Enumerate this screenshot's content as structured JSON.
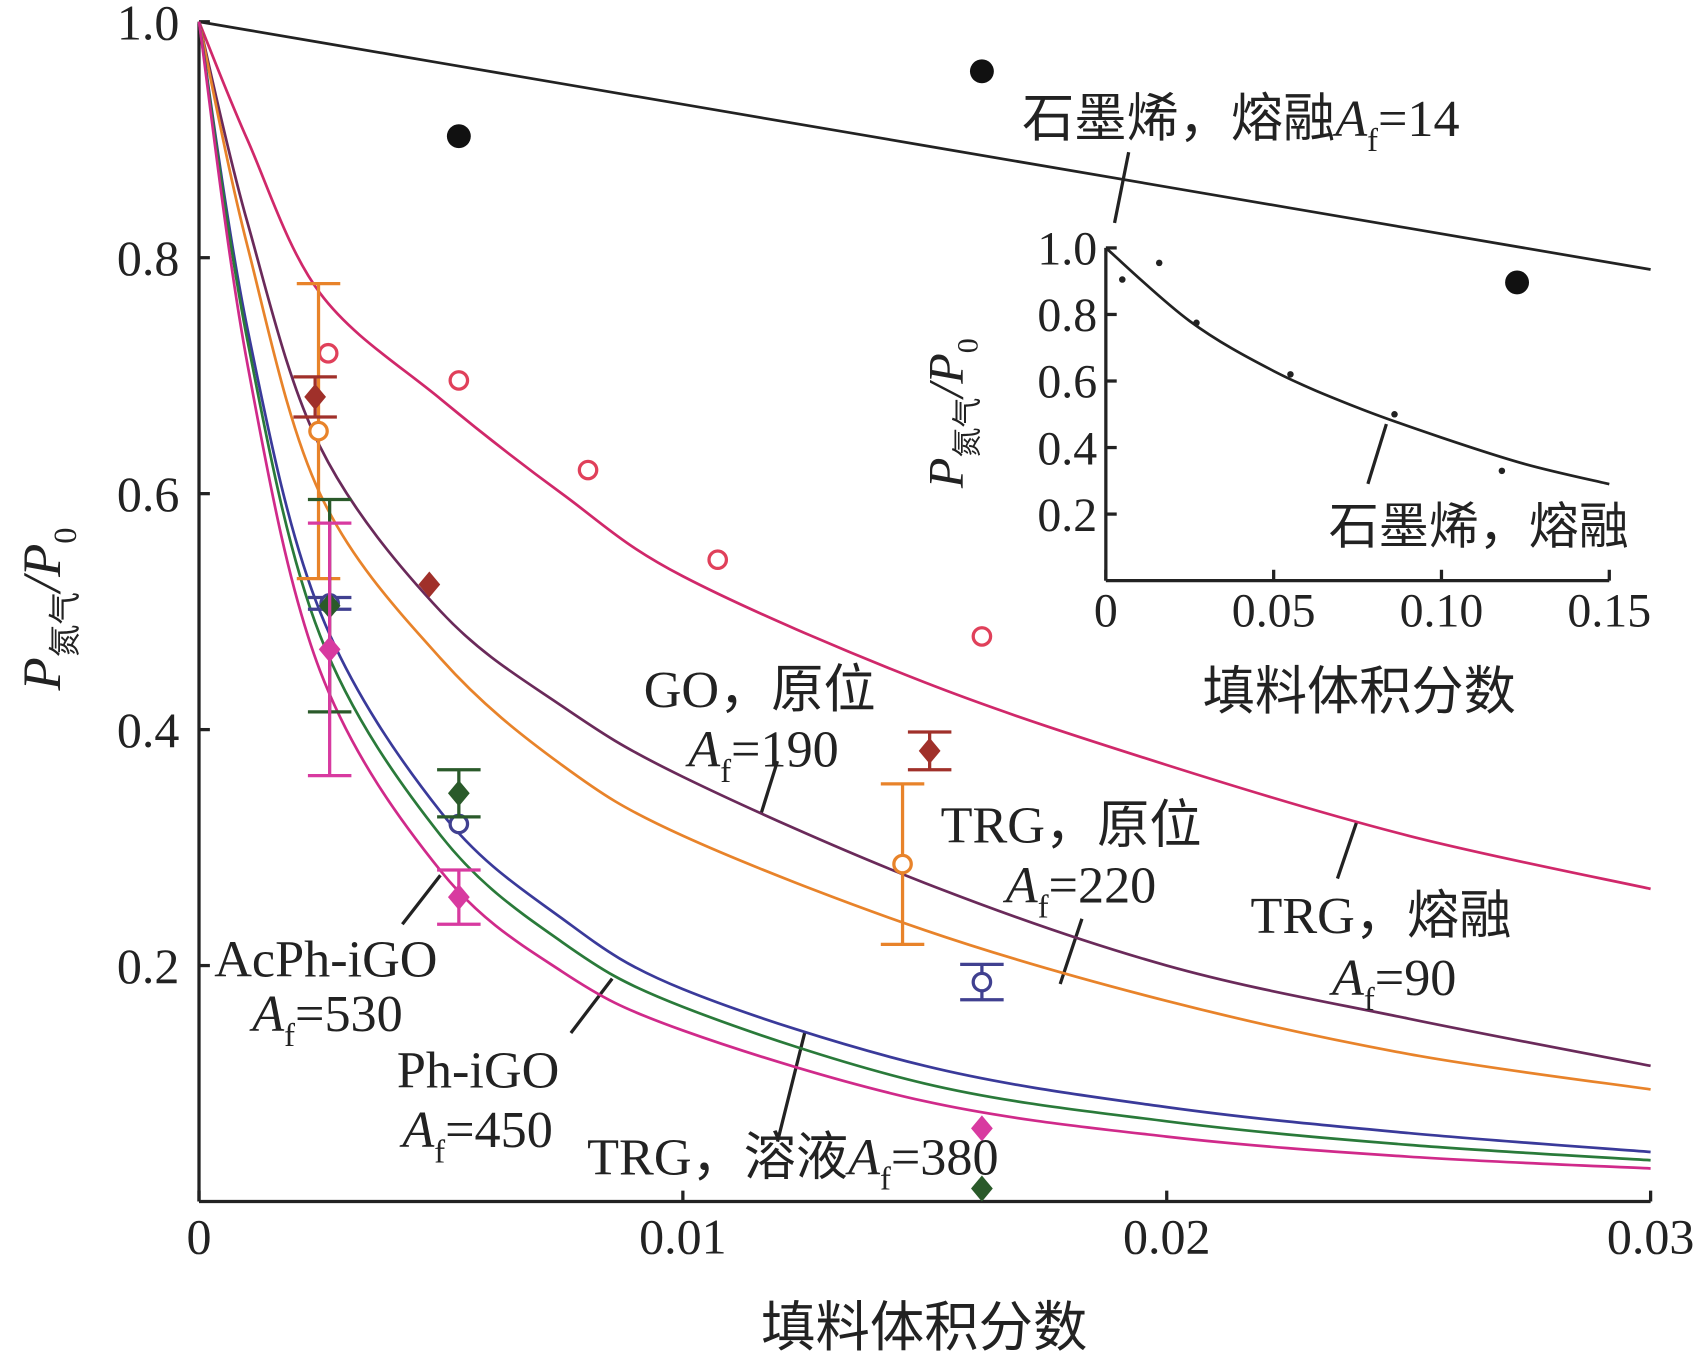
{
  "chart_data": {
    "type": "line",
    "xlabel": "填料体积分数",
    "ylabel": [
      "P",
      "氮气",
      "/P",
      "0"
    ],
    "xlim": [
      0,
      0.03
    ],
    "ylim": [
      0,
      1
    ],
    "xticks": [
      0,
      0.01,
      0.02,
      0.03
    ],
    "yticks": [
      0.2,
      0.4,
      0.6,
      0.8,
      {
        "value": 1.0,
        "label": "1.0"
      }
    ],
    "af_symbol": "A",
    "af_subscript": "f",
    "x": [
      0,
      0.001,
      0.0025,
      0.005,
      0.0075,
      0.01,
      0.015,
      0.02,
      0.025,
      0.03
    ],
    "series": [
      {
        "color": "#222222",
        "values": [
          1,
          0.993,
          0.9825,
          0.965,
          0.9475,
          0.93,
          0.895,
          0.86,
          0.825,
          0.79
        ]
      },
      {
        "color": "#d0286a",
        "values": [
          1,
          0.9,
          0.77,
          0.68,
          0.6,
          0.53,
          0.44,
          0.37,
          0.31,
          0.265
        ]
      },
      {
        "color": "#6a2a5a",
        "values": [
          1,
          0.83,
          0.64,
          0.5,
          0.42,
          0.36,
          0.27,
          0.2,
          0.155,
          0.115
        ]
      },
      {
        "color": "#e8832a",
        "values": [
          1,
          0.81,
          0.6,
          0.46,
          0.37,
          0.31,
          0.23,
          0.17,
          0.125,
          0.095
        ]
      },
      {
        "color": "#3a3a9a",
        "values": [
          1,
          0.74,
          0.5,
          0.33,
          0.24,
          0.18,
          0.115,
          0.08,
          0.058,
          0.042
        ]
      },
      {
        "color": "#2a7a3a",
        "values": [
          1,
          0.73,
          0.48,
          0.31,
          0.22,
          0.165,
          0.1,
          0.068,
          0.048,
          0.035
        ]
      },
      {
        "color": "#d02a8a",
        "values": [
          1,
          0.71,
          0.45,
          0.28,
          0.195,
          0.145,
          0.085,
          0.055,
          0.038,
          0.028
        ]
      }
    ],
    "points": [
      {
        "color": "#111111",
        "marker": "dot",
        "x": [
          0.00537,
          0.01618,
          0.02724
        ],
        "values": [
          0.903,
          0.958,
          0.779
        ],
        "errors": [
          null,
          null,
          null
        ]
      },
      {
        "color": "#e0405a",
        "marker": "circle",
        "x": [
          0.00267,
          0.00537,
          0.00804,
          0.01072,
          0.01618
        ],
        "values": [
          0.719,
          0.696,
          0.62,
          0.544,
          0.479
        ],
        "errors": [
          null,
          null,
          null,
          null,
          null
        ]
      },
      {
        "color": "#e8832a",
        "marker": "circle",
        "x": [
          0.00247,
          0.01454
        ],
        "values": [
          0.653,
          0.286
        ],
        "errors": [
          0.125,
          0.068
        ]
      },
      {
        "color": "#a0302a",
        "marker": "diamond",
        "x": [
          0.0024,
          0.00476,
          0.0151
        ],
        "values": [
          0.682,
          0.523,
          0.382
        ],
        "errors": [
          0.017,
          null,
          0.016
        ]
      },
      {
        "color": "#404090",
        "marker": "circle",
        "x": [
          0.0027,
          0.00537,
          0.01618
        ],
        "values": [
          0.507,
          0.32,
          0.186
        ],
        "errors": [
          0.005,
          null,
          0.015
        ]
      },
      {
        "color": "#2a5a2a",
        "marker": "diamond",
        "x": [
          0.0027,
          0.00537,
          0.01618
        ],
        "values": [
          0.505,
          0.346,
          0.011
        ],
        "errors": [
          0.09,
          0.02,
          null
        ]
      },
      {
        "color": "#d83aa0",
        "marker": "diamond",
        "x": [
          0.0027,
          0.00537,
          0.01618
        ],
        "values": [
          0.468,
          0.258,
          0.062
        ],
        "errors": [
          0.107,
          0.023,
          null
        ]
      }
    ],
    "annotations": [
      {
        "text": "石墨烯，熔融",
        "af": "=14"
      },
      {
        "text": "GO，原位",
        "af": "=190"
      },
      {
        "text": "TRG，原位",
        "af": "=220"
      },
      {
        "text": "TRG，熔融",
        "af": "=90"
      },
      {
        "text": "AcPh-iGO",
        "af": "=530"
      },
      {
        "text": "Ph-iGO",
        "af": "=450"
      },
      {
        "text": "TRG，溶液",
        "af": "=380"
      }
    ],
    "inset": {
      "xlabel": "填料体积分数",
      "ylabel": [
        "P",
        "氮气",
        "/P",
        "0"
      ],
      "label": "石墨烯，熔融",
      "xlim": [
        0,
        0.15
      ],
      "ylim": [
        0,
        1
      ],
      "xticks": [
        0,
        0.05,
        {
          "value": 0.1,
          "label": "0.10"
        },
        0.15
      ],
      "yticks": [
        0.2,
        0.4,
        0.6,
        0.8,
        {
          "value": 1.0,
          "label": "1.0"
        }
      ],
      "x": [
        0,
        0.025,
        0.05,
        0.075,
        0.1,
        0.125,
        0.15
      ],
      "values": [
        1,
        0.78,
        0.63,
        0.52,
        0.43,
        0.35,
        0.29
      ],
      "point_x": [
        0.0049,
        0.0159,
        0.027,
        0.055,
        0.086,
        0.118
      ],
      "point_values": [
        0.905,
        0.955,
        0.775,
        0.62,
        0.5,
        0.33
      ]
    }
  }
}
